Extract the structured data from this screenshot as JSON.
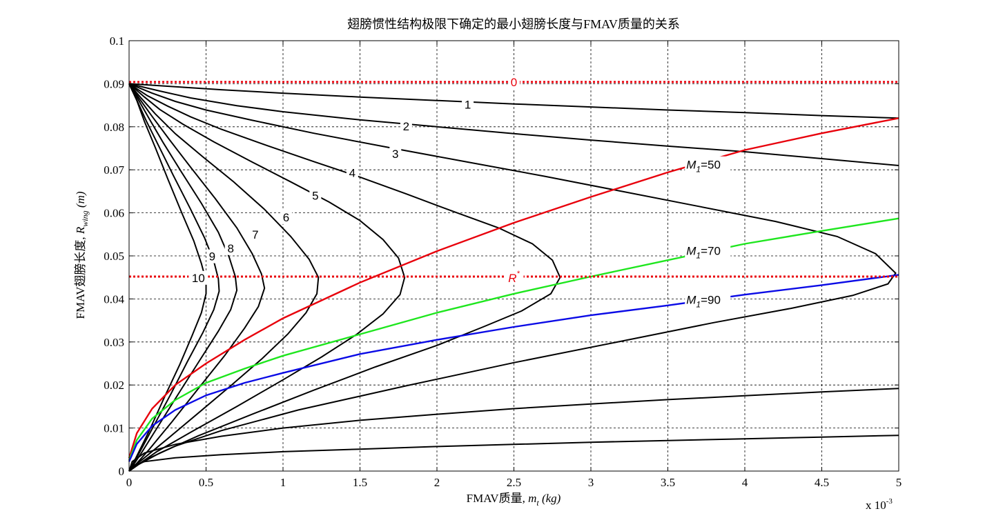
{
  "chart_data": {
    "type": "line",
    "title": "翅膀惯性结构极限下确定的最小翅膀长度与FMAV质量的关系",
    "xlabel": "FMAV质量, ",
    "xlabel_math": "m",
    "xlabel_math_sub": "t",
    "xlabel_unit": " (kg)",
    "ylabel": "FMAV翅膀长度, ",
    "ylabel_math": "R",
    "ylabel_math_sub": "wing",
    "ylabel_unit": " (m)",
    "x_multiplier": "x 10",
    "x_multiplier_exp": "-3",
    "xlim": [
      0,
      5
    ],
    "ylim": [
      0,
      0.1
    ],
    "xticks": [
      0,
      0.5,
      1,
      1.5,
      2,
      2.5,
      3,
      3.5,
      4,
      4.5,
      5
    ],
    "xtick_labels": [
      "0",
      "0.5",
      "1",
      "1.5",
      "2",
      "2.5",
      "3",
      "3.5",
      "4",
      "4.5",
      "5"
    ],
    "yticks": [
      0,
      0.01,
      0.02,
      0.03,
      0.04,
      0.05,
      0.06,
      0.07,
      0.08,
      0.09,
      0.1
    ],
    "ytick_labels": [
      "0",
      "0.01",
      "0.02",
      "0.03",
      "0.04",
      "0.05",
      "0.06",
      "0.07",
      "0.08",
      "0.09",
      "0.1"
    ],
    "grid": true,
    "colors": {
      "contour": "#000000",
      "m50": "#e8000b",
      "m70": "#1ee61e",
      "m90": "#0a0ae6",
      "ref": "#e8000b"
    },
    "contours": [
      {
        "label": "0",
        "x": [
          0,
          5
        ],
        "y": [
          0.0904,
          0.0904
        ],
        "label_at": [
          2.5,
          0.0904
        ],
        "color": "#e8000b",
        "dashed": true
      },
      {
        "label": "1",
        "x": [
          0,
          0.3,
          0.6,
          1,
          1.5,
          2,
          2.5,
          3,
          3.5,
          4,
          4.5,
          5
        ],
        "y": [
          0.09,
          0.0893,
          0.0886,
          0.0878,
          0.0869,
          0.0861,
          0.0853,
          0.0846,
          0.0839,
          0.0833,
          0.0826,
          0.082
        ],
        "label_at": [
          2.2,
          0.0852
        ],
        "color": "#000000",
        "dashed": false
      },
      {
        "label": "2",
        "x": [
          0,
          0.2,
          0.4,
          0.7,
          1,
          1.5,
          2,
          2.5,
          3,
          3.5,
          4,
          4.5,
          5
        ],
        "y": [
          0.09,
          0.0883,
          0.0867,
          0.0849,
          0.0835,
          0.0816,
          0.08,
          0.0784,
          0.0769,
          0.0755,
          0.0742,
          0.0726,
          0.071
        ],
        "label_at": [
          1.8,
          0.0801
        ],
        "color": "#000000",
        "dashed": false
      },
      {
        "label": "3",
        "x": [
          0,
          0.15,
          0.3,
          0.5,
          0.8,
          1.2,
          1.7,
          2.2,
          2.7,
          3.2,
          3.7,
          4.2,
          4.6,
          4.85,
          4.98,
          4.93,
          4.7,
          4.3,
          3.8,
          3.2,
          2.5,
          1.8,
          1.1,
          0.6,
          0.3,
          0.1,
          0
        ],
        "y": [
          0.09,
          0.0878,
          0.0859,
          0.0839,
          0.0815,
          0.0785,
          0.0751,
          0.0718,
          0.0685,
          0.065,
          0.0615,
          0.058,
          0.0545,
          0.0505,
          0.046,
          0.0435,
          0.0408,
          0.0378,
          0.0345,
          0.0302,
          0.0252,
          0.0198,
          0.0142,
          0.0094,
          0.0058,
          0.0025,
          0
        ],
        "label_at": [
          1.73,
          0.0737
        ],
        "color": "#000000",
        "dashed": false
      },
      {
        "label": "4",
        "x": [
          0,
          0.12,
          0.25,
          0.4,
          0.6,
          0.9,
          1.2,
          1.5,
          1.8,
          2.1,
          2.4,
          2.62,
          2.75,
          2.8,
          2.74,
          2.55,
          2.3,
          2,
          1.6,
          1.2,
          0.8,
          0.45,
          0.2,
          0.06,
          0
        ],
        "y": [
          0.09,
          0.0872,
          0.0848,
          0.0823,
          0.0794,
          0.0756,
          0.0719,
          0.0683,
          0.0644,
          0.0604,
          0.0565,
          0.0528,
          0.049,
          0.045,
          0.0412,
          0.0372,
          0.0335,
          0.0292,
          0.0242,
          0.0188,
          0.0132,
          0.0082,
          0.0042,
          0.0015,
          0
        ],
        "label_at": [
          1.45,
          0.0693
        ],
        "color": "#000000",
        "dashed": false
      },
      {
        "label": "5",
        "x": [
          0,
          0.1,
          0.2,
          0.35,
          0.55,
          0.8,
          1.05,
          1.3,
          1.5,
          1.65,
          1.75,
          1.79,
          1.76,
          1.65,
          1.48,
          1.25,
          1,
          0.7,
          0.4,
          0.18,
          0.05,
          0
        ],
        "y": [
          0.09,
          0.0869,
          0.084,
          0.0806,
          0.0765,
          0.0718,
          0.0672,
          0.0625,
          0.0582,
          0.0538,
          0.0495,
          0.045,
          0.041,
          0.0365,
          0.0318,
          0.0265,
          0.0212,
          0.015,
          0.009,
          0.0045,
          0.0013,
          0
        ],
        "label_at": [
          1.21,
          0.064
        ],
        "color": "#000000",
        "dashed": false
      },
      {
        "label": "6",
        "x": [
          0,
          0.08,
          0.17,
          0.3,
          0.48,
          0.68,
          0.88,
          1.05,
          1.17,
          1.23,
          1.22,
          1.15,
          1.03,
          0.86,
          0.66,
          0.45,
          0.25,
          0.1,
          0.02,
          0
        ],
        "y": [
          0.09,
          0.0866,
          0.083,
          0.0784,
          0.073,
          0.0672,
          0.0608,
          0.0545,
          0.0492,
          0.045,
          0.0412,
          0.0368,
          0.0318,
          0.026,
          0.0198,
          0.0135,
          0.0075,
          0.0031,
          0.0008,
          0
        ],
        "label_at": [
          1.02,
          0.059
        ],
        "color": "#000000",
        "dashed": false
      },
      {
        "label": "7",
        "x": [
          0,
          0.07,
          0.15,
          0.26,
          0.4,
          0.56,
          0.7,
          0.8,
          0.86,
          0.88,
          0.84,
          0.75,
          0.62,
          0.45,
          0.28,
          0.13,
          0.04,
          0
        ],
        "y": [
          0.09,
          0.0864,
          0.0824,
          0.0771,
          0.0706,
          0.0633,
          0.0565,
          0.0505,
          0.0458,
          0.0425,
          0.0382,
          0.0332,
          0.0268,
          0.0192,
          0.0115,
          0.005,
          0.0014,
          0
        ],
        "label_at": [
          0.82,
          0.055
        ],
        "color": "#000000",
        "dashed": false
      },
      {
        "label": "8",
        "x": [
          0,
          0.06,
          0.13,
          0.22,
          0.34,
          0.47,
          0.58,
          0.65,
          0.69,
          0.7,
          0.66,
          0.58,
          0.46,
          0.33,
          0.19,
          0.08,
          0.02,
          0
        ],
        "y": [
          0.09,
          0.0863,
          0.0819,
          0.0764,
          0.0695,
          0.0622,
          0.0555,
          0.0497,
          0.0452,
          0.042,
          0.0375,
          0.0325,
          0.0258,
          0.0185,
          0.0105,
          0.0042,
          0.001,
          0
        ],
        "label_at": [
          0.66,
          0.0518
        ],
        "color": "#000000",
        "dashed": false
      },
      {
        "label": "9",
        "x": [
          0,
          0.05,
          0.11,
          0.19,
          0.29,
          0.4,
          0.49,
          0.55,
          0.58,
          0.585,
          0.55,
          0.48,
          0.38,
          0.27,
          0.15,
          0.06,
          0.015,
          0
        ],
        "y": [
          0.09,
          0.0862,
          0.0815,
          0.0757,
          0.0685,
          0.0608,
          0.0542,
          0.0488,
          0.0447,
          0.0418,
          0.0375,
          0.0322,
          0.0255,
          0.0178,
          0.0098,
          0.0038,
          0.0009,
          0
        ],
        "label_at": [
          0.54,
          0.0499
        ],
        "color": "#000000",
        "dashed": false
      },
      {
        "label": "10",
        "x": [
          0,
          0.05,
          0.1,
          0.17,
          0.25,
          0.34,
          0.42,
          0.47,
          0.5,
          0.5,
          0.47,
          0.41,
          0.33,
          0.23,
          0.13,
          0.05,
          0.012,
          0
        ],
        "y": [
          0.09,
          0.0861,
          0.0812,
          0.0752,
          0.068,
          0.0602,
          0.0535,
          0.0482,
          0.0442,
          0.0412,
          0.0368,
          0.0315,
          0.0248,
          0.0172,
          0.0093,
          0.0035,
          0.0008,
          0
        ],
        "label_at": [
          0.45,
          0.0449
        ],
        "color": "#000000",
        "dashed": false
      }
    ],
    "lower_contours": [
      {
        "x": [
          0,
          0.02,
          0.1,
          0.3,
          0.6,
          1,
          1.5,
          2,
          2.5,
          3,
          3.5,
          4,
          4.5,
          5
        ],
        "y": [
          0,
          0.0012,
          0.0022,
          0.0031,
          0.0038,
          0.0045,
          0.0051,
          0.0057,
          0.0062,
          0.0067,
          0.0071,
          0.0075,
          0.0079,
          0.0083
        ]
      },
      {
        "x": [
          0,
          0.02,
          0.1,
          0.3,
          0.6,
          1,
          1.5,
          2,
          2.5,
          3,
          3.5,
          4,
          4.5,
          5
        ],
        "y": [
          0,
          0.0022,
          0.0042,
          0.0062,
          0.0081,
          0.01,
          0.0118,
          0.0132,
          0.0145,
          0.0156,
          0.0166,
          0.0175,
          0.0184,
          0.0192
        ]
      }
    ],
    "series": [
      {
        "name": "M1=50",
        "label_main": "M",
        "label_sub": "1",
        "label_tail": "=50",
        "color": "#e8000b",
        "label_at": [
          3.62,
          0.0712
        ],
        "x": [
          0,
          0.05,
          0.15,
          0.3,
          0.5,
          0.75,
          1,
          1.5,
          2,
          2.5,
          3,
          3.5,
          4,
          4.5,
          5
        ],
        "y": [
          0.003,
          0.0088,
          0.0145,
          0.02,
          0.025,
          0.0305,
          0.0355,
          0.0438,
          0.0511,
          0.0577,
          0.0637,
          0.0694,
          0.0746,
          0.0785,
          0.082
        ]
      },
      {
        "name": "M1=70",
        "label_main": "M",
        "label_sub": "1",
        "label_tail": "=70",
        "color": "#1ee61e",
        "label_at": [
          3.62,
          0.0512
        ],
        "x": [
          0,
          0.05,
          0.15,
          0.3,
          0.5,
          0.75,
          1,
          1.5,
          2,
          2.5,
          3,
          3.5,
          4,
          4.5,
          5
        ],
        "y": [
          0.0025,
          0.0072,
          0.0122,
          0.0165,
          0.0205,
          0.0238,
          0.0268,
          0.0318,
          0.0368,
          0.0412,
          0.0452,
          0.049,
          0.0528,
          0.0558,
          0.0587
        ]
      },
      {
        "name": "M1=90",
        "label_main": "M",
        "label_sub": "1",
        "label_tail": "=90",
        "color": "#0a0ae6",
        "label_at": [
          3.62,
          0.0398
        ],
        "x": [
          0,
          0.05,
          0.15,
          0.3,
          0.5,
          0.75,
          1,
          1.5,
          2,
          2.5,
          3,
          3.5,
          4,
          4.5,
          5
        ],
        "y": [
          0.0022,
          0.0063,
          0.0105,
          0.0142,
          0.0176,
          0.0205,
          0.0228,
          0.0272,
          0.0305,
          0.0335,
          0.0362,
          0.0385,
          0.041,
          0.0432,
          0.0456
        ]
      }
    ],
    "reference_lines": [
      {
        "name": "R*",
        "label_main": "R",
        "label_sup": "*",
        "y": 0.0452,
        "label_at": [
          2.5,
          0.0452
        ],
        "color": "#e8000b"
      }
    ]
  }
}
